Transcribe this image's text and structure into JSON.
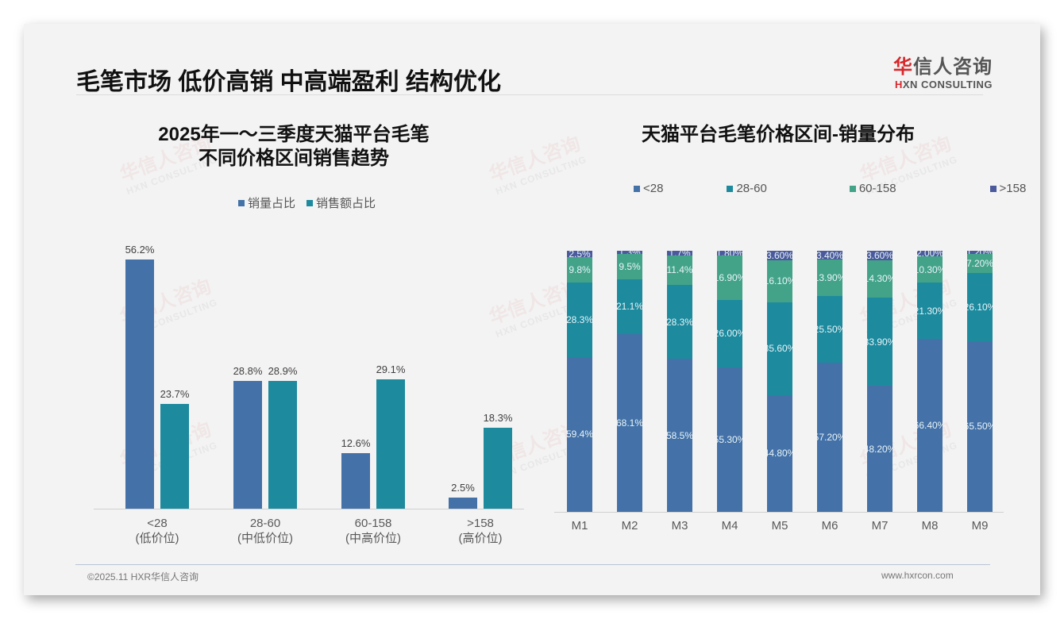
{
  "slide": {
    "title": "毛笔市场 低价高销 中高端盈利 结构优化",
    "logo": {
      "cn_accent": "华",
      "cn_rest": "信人咨询",
      "en_accent": "H",
      "en_rest": "XN CONSULTING"
    },
    "watermark": {
      "cn": "华信人咨询",
      "en": "HXN CONSULTING"
    },
    "footer": {
      "left": "©2025.11 HXR华信人咨询",
      "right": "www.hxrcon.com"
    }
  },
  "colors": {
    "lt28": "#4472a8",
    "r28_60": "#1d8a9e",
    "r60_158": "#43a389",
    "gt158": "#4a5a9c",
    "sales_volume": "#4472a8",
    "sales_amount": "#1d8a9e"
  },
  "chart_data": [
    {
      "type": "bar",
      "title": "2025年一～三季度天猫平台毛笔 不同价格区间销售趋势",
      "title_lines": [
        "2025年一～三季度天猫平台毛笔",
        "不同价格区间销售趋势"
      ],
      "categories": [
        "<28 (低价位)",
        "28-60 (中低价位)",
        "60-158 (中高价位)",
        ">158 (高价位)"
      ],
      "category_lines": [
        [
          "<28",
          "(低价位)"
        ],
        [
          "28-60",
          "(中低价位)"
        ],
        [
          "60-158",
          "(中高价位)"
        ],
        [
          ">158",
          "(高价位)"
        ]
      ],
      "series": [
        {
          "name": "销量占比",
          "values": [
            56.2,
            28.8,
            12.6,
            2.5
          ],
          "labels": [
            "56.2%",
            "28.8%",
            "12.6%",
            "2.5%"
          ]
        },
        {
          "name": "销售额占比",
          "values": [
            23.7,
            28.9,
            29.1,
            18.3
          ],
          "labels": [
            "23.7%",
            "28.9%",
            "29.1%",
            "18.3%"
          ]
        }
      ],
      "xlabel": "",
      "ylabel": "",
      "ylim": [
        0,
        60
      ],
      "grid": false,
      "legend_position": "top",
      "unit": "%"
    },
    {
      "type": "bar",
      "stacked": true,
      "title": "天猫平台毛笔价格区间-销量分布",
      "categories": [
        "M1",
        "M2",
        "M3",
        "M4",
        "M5",
        "M6",
        "M7",
        "M8",
        "M9"
      ],
      "series": [
        {
          "name": "<28",
          "values": [
            59.4,
            68.1,
            58.5,
            55.3,
            44.8,
            57.2,
            48.2,
            66.4,
            65.5
          ],
          "labels": [
            "59.4%",
            "68.1%",
            "58.5%",
            "55.30%",
            "44.80%",
            "57.20%",
            "48.20%",
            "66.40%",
            "65.50%"
          ]
        },
        {
          "name": "28-60",
          "values": [
            28.3,
            21.1,
            28.3,
            26.0,
            35.6,
            25.5,
            33.9,
            21.3,
            26.1
          ],
          "labels": [
            "28.3%",
            "21.1%",
            "28.3%",
            "26.00%",
            "35.60%",
            "25.50%",
            "33.90%",
            "21.30%",
            "26.10%"
          ]
        },
        {
          "name": "60-158",
          "values": [
            9.8,
            9.5,
            11.4,
            16.9,
            16.1,
            13.9,
            14.3,
            10.3,
            7.2
          ],
          "labels": [
            "9.8%",
            "9.5%",
            "11.4%",
            "16.90%",
            "16.10%",
            "13.90%",
            "14.30%",
            "10.30%",
            "7.20%"
          ]
        },
        {
          "name": ">158",
          "values": [
            2.5,
            1.3,
            1.7,
            1.8,
            3.6,
            3.4,
            3.6,
            2.0,
            1.2
          ],
          "labels": [
            "2.5%",
            "1.3%",
            "1.7%",
            "1.80%",
            "3.60%",
            "3.40%",
            "3.60%",
            "2.00%",
            "1.20%"
          ]
        }
      ],
      "xlabel": "",
      "ylabel": "",
      "ylim": [
        0,
        100
      ],
      "grid": false,
      "legend_position": "top",
      "unit": "%"
    }
  ]
}
